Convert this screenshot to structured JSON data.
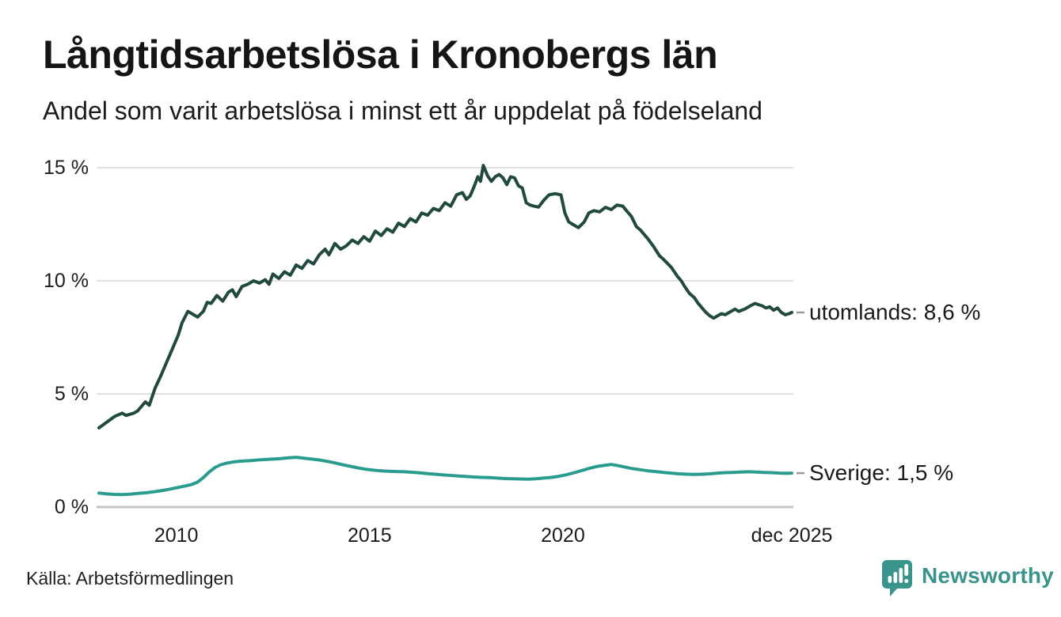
{
  "header": {
    "title": "Långtidsarbetslösa i Kronobergs län",
    "subtitle": "Andel som varit arbetslösa i minst ett år uppdelat på födelseland"
  },
  "footer": {
    "source": "Källa: Arbetsförmedlingen",
    "brand": "Newsworthy"
  },
  "colors": {
    "background": "#ffffff",
    "text": "#1a1a1a",
    "grid": "#e2e2e2",
    "grid_zero": "#c4c4c4",
    "label_dash": "#999999",
    "brand_teal": "#3a948b",
    "series_utomlands": "#21493f",
    "series_sverige": "#2a9c8e"
  },
  "chart_data": {
    "type": "line",
    "title": "Långtidsarbetslösa i Kronobergs län",
    "subtitle": "Andel som varit arbetslösa i minst ett år uppdelat på födelseland",
    "unit": "%",
    "grid": "horizontal-only",
    "legend_position": "right-end-labels",
    "x_range": [
      2008.0,
      2025.92
    ],
    "ylim": [
      0,
      15.5
    ],
    "y_axis": {
      "ticks": [
        {
          "label": "15 %",
          "value": 15
        },
        {
          "label": "10 %",
          "value": 10
        },
        {
          "label": "5 %",
          "value": 5
        },
        {
          "label": "0 %",
          "value": 0
        }
      ]
    },
    "x_axis": {
      "ticks": [
        {
          "label": "2010",
          "year": 2010
        },
        {
          "label": "2015",
          "year": 2015
        },
        {
          "label": "2020",
          "year": 2020
        },
        {
          "label": "dec 2025",
          "year": 2025.92
        }
      ]
    },
    "series": [
      {
        "name": "utomlands",
        "label": "utomlands: 8,6 %",
        "end_value": 8.6,
        "color": "#21493f",
        "points": [
          [
            2008.0,
            3.5
          ],
          [
            2008.2,
            3.75
          ],
          [
            2008.4,
            4.0
          ],
          [
            2008.6,
            4.15
          ],
          [
            2008.7,
            4.05
          ],
          [
            2008.9,
            4.15
          ],
          [
            2009.0,
            4.25
          ],
          [
            2009.2,
            4.65
          ],
          [
            2009.3,
            4.5
          ],
          [
            2009.45,
            5.25
          ],
          [
            2009.6,
            5.8
          ],
          [
            2009.75,
            6.4
          ],
          [
            2009.9,
            7.0
          ],
          [
            2010.05,
            7.6
          ],
          [
            2010.15,
            8.15
          ],
          [
            2010.3,
            8.65
          ],
          [
            2010.45,
            8.5
          ],
          [
            2010.55,
            8.4
          ],
          [
            2010.7,
            8.65
          ],
          [
            2010.8,
            9.05
          ],
          [
            2010.9,
            9.0
          ],
          [
            2011.05,
            9.35
          ],
          [
            2011.2,
            9.1
          ],
          [
            2011.35,
            9.5
          ],
          [
            2011.45,
            9.6
          ],
          [
            2011.55,
            9.3
          ],
          [
            2011.7,
            9.75
          ],
          [
            2011.85,
            9.85
          ],
          [
            2012.0,
            10.0
          ],
          [
            2012.15,
            9.9
          ],
          [
            2012.3,
            10.05
          ],
          [
            2012.4,
            9.85
          ],
          [
            2012.5,
            10.3
          ],
          [
            2012.65,
            10.1
          ],
          [
            2012.8,
            10.4
          ],
          [
            2012.95,
            10.25
          ],
          [
            2013.1,
            10.7
          ],
          [
            2013.25,
            10.55
          ],
          [
            2013.4,
            10.9
          ],
          [
            2013.55,
            10.75
          ],
          [
            2013.7,
            11.15
          ],
          [
            2013.85,
            11.4
          ],
          [
            2013.95,
            11.15
          ],
          [
            2014.1,
            11.65
          ],
          [
            2014.25,
            11.4
          ],
          [
            2014.4,
            11.55
          ],
          [
            2014.55,
            11.8
          ],
          [
            2014.7,
            11.65
          ],
          [
            2014.85,
            11.95
          ],
          [
            2015.0,
            11.75
          ],
          [
            2015.15,
            12.2
          ],
          [
            2015.3,
            12.0
          ],
          [
            2015.45,
            12.3
          ],
          [
            2015.6,
            12.15
          ],
          [
            2015.75,
            12.55
          ],
          [
            2015.9,
            12.4
          ],
          [
            2016.05,
            12.75
          ],
          [
            2016.2,
            12.6
          ],
          [
            2016.35,
            13.0
          ],
          [
            2016.5,
            12.9
          ],
          [
            2016.65,
            13.2
          ],
          [
            2016.8,
            13.1
          ],
          [
            2016.95,
            13.45
          ],
          [
            2017.1,
            13.3
          ],
          [
            2017.25,
            13.8
          ],
          [
            2017.4,
            13.9
          ],
          [
            2017.5,
            13.6
          ],
          [
            2017.6,
            13.75
          ],
          [
            2017.7,
            14.15
          ],
          [
            2017.8,
            14.6
          ],
          [
            2017.87,
            14.4
          ],
          [
            2017.94,
            15.1
          ],
          [
            2018.05,
            14.65
          ],
          [
            2018.15,
            14.4
          ],
          [
            2018.25,
            14.6
          ],
          [
            2018.35,
            14.7
          ],
          [
            2018.45,
            14.55
          ],
          [
            2018.55,
            14.25
          ],
          [
            2018.65,
            14.6
          ],
          [
            2018.75,
            14.55
          ],
          [
            2018.85,
            14.2
          ],
          [
            2018.95,
            14.1
          ],
          [
            2019.05,
            13.45
          ],
          [
            2019.15,
            13.35
          ],
          [
            2019.25,
            13.3
          ],
          [
            2019.37,
            13.26
          ],
          [
            2019.5,
            13.55
          ],
          [
            2019.64,
            13.8
          ],
          [
            2019.8,
            13.85
          ],
          [
            2019.95,
            13.8
          ],
          [
            2020.05,
            13.0
          ],
          [
            2020.15,
            12.6
          ],
          [
            2020.25,
            12.5
          ],
          [
            2020.4,
            12.35
          ],
          [
            2020.55,
            12.6
          ],
          [
            2020.67,
            13.0
          ],
          [
            2020.8,
            13.1
          ],
          [
            2020.95,
            13.05
          ],
          [
            2021.1,
            13.25
          ],
          [
            2021.25,
            13.15
          ],
          [
            2021.4,
            13.35
          ],
          [
            2021.55,
            13.3
          ],
          [
            2021.62,
            13.15
          ],
          [
            2021.77,
            12.85
          ],
          [
            2021.9,
            12.4
          ],
          [
            2022.0,
            12.25
          ],
          [
            2022.2,
            11.85
          ],
          [
            2022.35,
            11.5
          ],
          [
            2022.5,
            11.1
          ],
          [
            2022.6,
            10.95
          ],
          [
            2022.8,
            10.6
          ],
          [
            2022.96,
            10.2
          ],
          [
            2023.06,
            10.0
          ],
          [
            2023.15,
            9.75
          ],
          [
            2023.27,
            9.45
          ],
          [
            2023.4,
            9.25
          ],
          [
            2023.5,
            9.0
          ],
          [
            2023.6,
            8.8
          ],
          [
            2023.7,
            8.6
          ],
          [
            2023.8,
            8.45
          ],
          [
            2023.9,
            8.35
          ],
          [
            2024.0,
            8.45
          ],
          [
            2024.1,
            8.55
          ],
          [
            2024.2,
            8.5
          ],
          [
            2024.3,
            8.6
          ],
          [
            2024.45,
            8.75
          ],
          [
            2024.55,
            8.65
          ],
          [
            2024.7,
            8.75
          ],
          [
            2024.85,
            8.9
          ],
          [
            2024.97,
            9.0
          ],
          [
            2025.05,
            8.95
          ],
          [
            2025.15,
            8.9
          ],
          [
            2025.25,
            8.8
          ],
          [
            2025.35,
            8.85
          ],
          [
            2025.45,
            8.7
          ],
          [
            2025.55,
            8.8
          ],
          [
            2025.65,
            8.6
          ],
          [
            2025.75,
            8.5
          ],
          [
            2025.85,
            8.55
          ],
          [
            2025.92,
            8.6
          ]
        ]
      },
      {
        "name": "Sverige",
        "label": "Sverige: 1,5 %",
        "end_value": 1.5,
        "color": "#2a9c8e",
        "points": [
          [
            2008.0,
            0.62
          ],
          [
            2008.2,
            0.58
          ],
          [
            2008.4,
            0.56
          ],
          [
            2008.6,
            0.55
          ],
          [
            2008.8,
            0.57
          ],
          [
            2009.0,
            0.6
          ],
          [
            2009.2,
            0.63
          ],
          [
            2009.4,
            0.67
          ],
          [
            2009.6,
            0.72
          ],
          [
            2009.8,
            0.78
          ],
          [
            2010.0,
            0.85
          ],
          [
            2010.2,
            0.92
          ],
          [
            2010.4,
            1.0
          ],
          [
            2010.55,
            1.1
          ],
          [
            2010.7,
            1.3
          ],
          [
            2010.85,
            1.55
          ],
          [
            2011.0,
            1.75
          ],
          [
            2011.15,
            1.87
          ],
          [
            2011.3,
            1.94
          ],
          [
            2011.5,
            2.0
          ],
          [
            2011.7,
            2.03
          ],
          [
            2011.9,
            2.05
          ],
          [
            2012.1,
            2.08
          ],
          [
            2012.3,
            2.1
          ],
          [
            2012.5,
            2.12
          ],
          [
            2012.7,
            2.14
          ],
          [
            2012.9,
            2.18
          ],
          [
            2013.1,
            2.2
          ],
          [
            2013.3,
            2.16
          ],
          [
            2013.5,
            2.12
          ],
          [
            2013.7,
            2.08
          ],
          [
            2013.9,
            2.02
          ],
          [
            2014.1,
            1.95
          ],
          [
            2014.3,
            1.87
          ],
          [
            2014.5,
            1.8
          ],
          [
            2014.7,
            1.73
          ],
          [
            2014.9,
            1.67
          ],
          [
            2015.1,
            1.63
          ],
          [
            2015.3,
            1.6
          ],
          [
            2015.5,
            1.58
          ],
          [
            2015.7,
            1.57
          ],
          [
            2015.9,
            1.56
          ],
          [
            2016.1,
            1.54
          ],
          [
            2016.3,
            1.51
          ],
          [
            2016.5,
            1.48
          ],
          [
            2016.7,
            1.45
          ],
          [
            2016.9,
            1.42
          ],
          [
            2017.1,
            1.4
          ],
          [
            2017.3,
            1.37
          ],
          [
            2017.5,
            1.35
          ],
          [
            2017.7,
            1.33
          ],
          [
            2017.9,
            1.31
          ],
          [
            2018.1,
            1.3
          ],
          [
            2018.3,
            1.28
          ],
          [
            2018.5,
            1.26
          ],
          [
            2018.7,
            1.25
          ],
          [
            2018.9,
            1.24
          ],
          [
            2019.1,
            1.23
          ],
          [
            2019.3,
            1.25
          ],
          [
            2019.5,
            1.28
          ],
          [
            2019.7,
            1.31
          ],
          [
            2019.9,
            1.36
          ],
          [
            2020.1,
            1.43
          ],
          [
            2020.3,
            1.52
          ],
          [
            2020.5,
            1.62
          ],
          [
            2020.7,
            1.72
          ],
          [
            2020.9,
            1.8
          ],
          [
            2021.1,
            1.85
          ],
          [
            2021.25,
            1.88
          ],
          [
            2021.4,
            1.84
          ],
          [
            2021.6,
            1.77
          ],
          [
            2021.8,
            1.7
          ],
          [
            2022.0,
            1.65
          ],
          [
            2022.2,
            1.6
          ],
          [
            2022.4,
            1.57
          ],
          [
            2022.6,
            1.53
          ],
          [
            2022.8,
            1.5
          ],
          [
            2023.0,
            1.47
          ],
          [
            2023.2,
            1.45
          ],
          [
            2023.4,
            1.44
          ],
          [
            2023.6,
            1.45
          ],
          [
            2023.8,
            1.47
          ],
          [
            2024.0,
            1.5
          ],
          [
            2024.2,
            1.52
          ],
          [
            2024.4,
            1.53
          ],
          [
            2024.6,
            1.55
          ],
          [
            2024.8,
            1.56
          ],
          [
            2025.0,
            1.55
          ],
          [
            2025.2,
            1.53
          ],
          [
            2025.4,
            1.52
          ],
          [
            2025.6,
            1.5
          ],
          [
            2025.8,
            1.49
          ],
          [
            2025.92,
            1.5
          ]
        ]
      }
    ]
  }
}
